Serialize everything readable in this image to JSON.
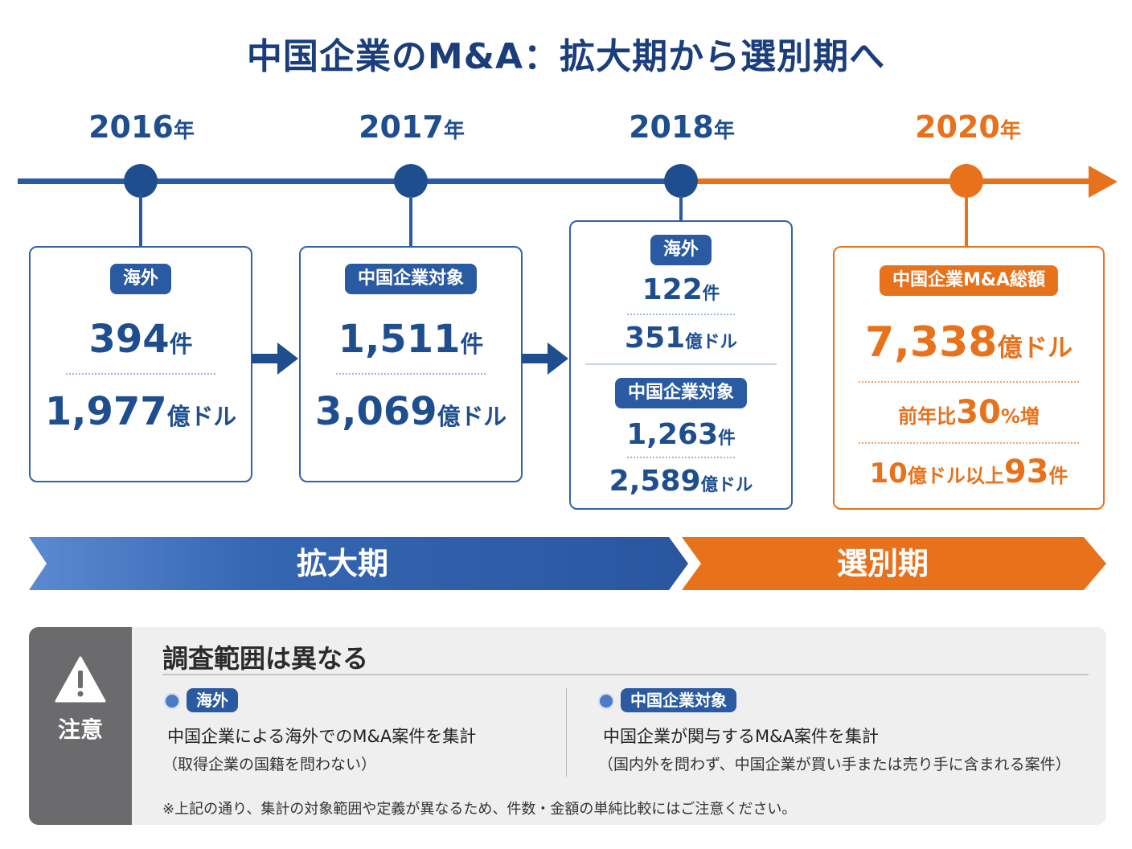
{
  "title": "中国企業のM&A：拡大期から選別期へ",
  "timeline": {
    "years": [
      {
        "num": "2016",
        "unit": "年"
      },
      {
        "num": "2017",
        "unit": "年"
      },
      {
        "num": "2018",
        "unit": "年"
      },
      {
        "num": "2020",
        "unit": "年"
      }
    ]
  },
  "cards": {
    "y2016": {
      "badge": "海外",
      "count_num": "394",
      "count_unit": "件",
      "amount_num": "1,977",
      "amount_unit": "億ドル"
    },
    "y2017": {
      "badge": "中国企業対象",
      "count_num": "1,511",
      "count_unit": "件",
      "amount_num": "3,069",
      "amount_unit": "億ドル"
    },
    "y2018": {
      "badge_a": "海外",
      "count_a_num": "122",
      "count_a_unit": "件",
      "amount_a_num": "351",
      "amount_a_unit": "億ドル",
      "badge_b": "中国企業対象",
      "count_b_num": "1,263",
      "count_b_unit": "件",
      "amount_b_num": "2,589",
      "amount_b_unit": "億ドル"
    },
    "y2020": {
      "badge": "中国企業M&A総額",
      "amount_num": "7,338",
      "amount_unit": "億ドル",
      "growth_pre": "前年比",
      "growth_num": "30",
      "growth_unit": "%増",
      "big_pre_num": "10",
      "big_pre_unit": "億ドル以上",
      "big_num": "93",
      "big_unit": "件"
    }
  },
  "phases": {
    "expansion": "拡大期",
    "selection": "選別期"
  },
  "note": {
    "side_label": "注意",
    "title": "調査範囲は異なる",
    "left": {
      "badge": "海外",
      "desc": "中国企業による海外でのM&A案件を集計",
      "sub": "（取得企業の国籍を問わない）"
    },
    "right": {
      "badge": "中国企業対象",
      "desc": "中国企業が関与するM&A案件を集計",
      "sub": "（国内外を問わず、中国企業が買い手または売り手に含まれる案件）"
    },
    "footnote": "※上記の通り、集計の対象範囲や定義が異なるため、件数・金額の単純比較にはご注意ください。"
  },
  "colors": {
    "blue": "#1f4e8f",
    "orange": "#e8711c",
    "note_gray": "#6b6b6d"
  },
  "icons": {
    "note": "warning-icon",
    "flow": "arrow-right-icon"
  }
}
